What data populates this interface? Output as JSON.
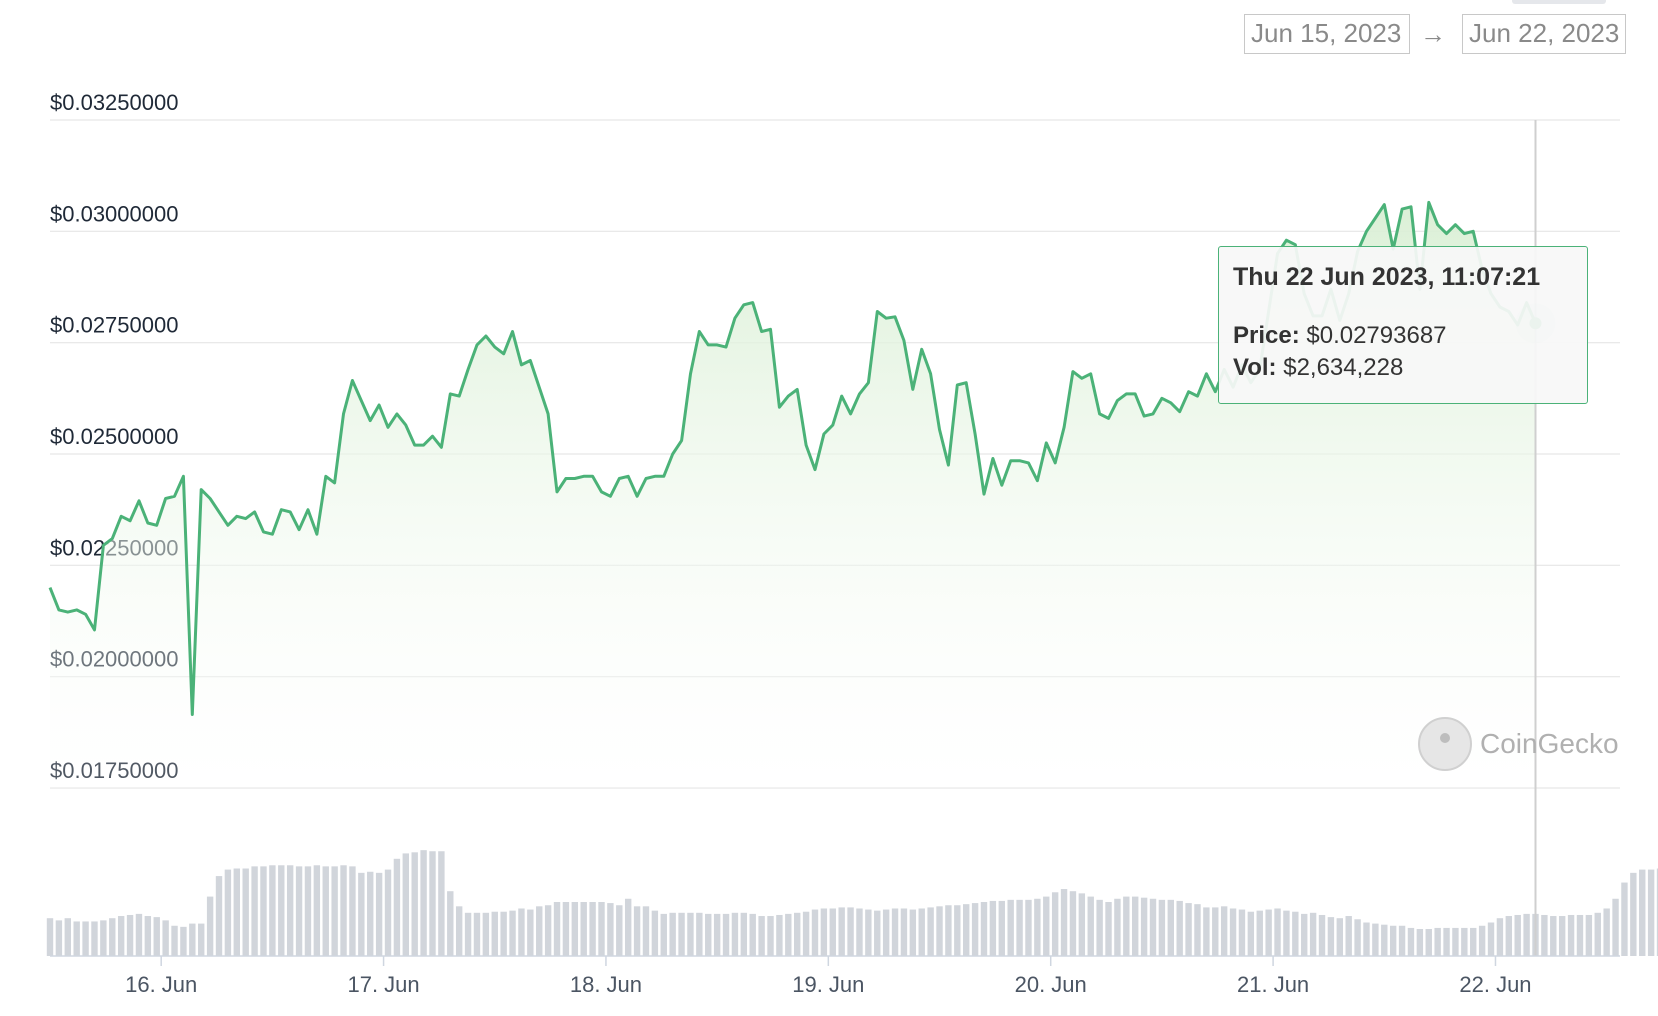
{
  "range": {
    "from": "Jun 15, 2023",
    "to": "Jun 22, 2023",
    "arrow": "→"
  },
  "tooltip": {
    "title": "Thu 22 Jun 2023, 11:07:21",
    "price_label": "Price:",
    "price_value": "$0.02793687",
    "vol_label": "Vol:",
    "vol_value": "$2,634,228"
  },
  "watermark": "CoinGecko",
  "colors": {
    "line": "#4bb278",
    "area_top": "#d9efd4",
    "volume_bar": "#d1d5db",
    "grid": "#e6e6e6"
  },
  "chart_data": {
    "type": "line",
    "y_ticks": [
      "$0.03250000",
      "$0.03000000",
      "$0.02750000",
      "$0.02500000",
      "$0.02250000",
      "$0.02000000",
      "$0.01750000"
    ],
    "y_tick_values": [
      0.0325,
      0.03,
      0.0275,
      0.025,
      0.0225,
      0.02,
      0.0175
    ],
    "ylim": [
      0.0175,
      0.0325
    ],
    "x_ticks": [
      "16. Jun",
      "17. Jun",
      "18. Jun",
      "19. Jun",
      "20. Jun",
      "21. Jun",
      "22. Jun"
    ],
    "x_tick_values": [
      1,
      2,
      3,
      4,
      5,
      6,
      7
    ],
    "xlim": [
      0.5,
      7.56
    ],
    "series": [
      {
        "values": [
          [
            0.5,
            0.022
          ],
          [
            0.54,
            0.0215
          ],
          [
            0.58,
            0.02145
          ],
          [
            0.62,
            0.0215
          ],
          [
            0.66,
            0.0214
          ],
          [
            0.7,
            0.02105
          ],
          [
            0.74,
            0.02295
          ],
          [
            0.78,
            0.0231
          ],
          [
            0.82,
            0.0236
          ],
          [
            0.86,
            0.0235
          ],
          [
            0.9,
            0.02395
          ],
          [
            0.94,
            0.02345
          ],
          [
            0.98,
            0.0234
          ],
          [
            1.02,
            0.024
          ],
          [
            1.06,
            0.02405
          ],
          [
            1.1,
            0.0245
          ],
          [
            1.14,
            0.01915
          ],
          [
            1.18,
            0.0242
          ],
          [
            1.22,
            0.024
          ],
          [
            1.26,
            0.0237
          ],
          [
            1.3,
            0.0234
          ],
          [
            1.34,
            0.0236
          ],
          [
            1.38,
            0.02355
          ],
          [
            1.42,
            0.0237
          ],
          [
            1.46,
            0.02325
          ],
          [
            1.5,
            0.0232
          ],
          [
            1.54,
            0.02375
          ],
          [
            1.58,
            0.0237
          ],
          [
            1.62,
            0.0233
          ],
          [
            1.66,
            0.02375
          ],
          [
            1.7,
            0.0232
          ],
          [
            1.74,
            0.0245
          ],
          [
            1.78,
            0.02435
          ],
          [
            1.82,
            0.0259
          ],
          [
            1.86,
            0.02665
          ],
          [
            1.9,
            0.0262
          ],
          [
            1.94,
            0.02575
          ],
          [
            1.98,
            0.0261
          ],
          [
            2.02,
            0.0256
          ],
          [
            2.06,
            0.0259
          ],
          [
            2.1,
            0.02565
          ],
          [
            2.14,
            0.0252
          ],
          [
            2.18,
            0.0252
          ],
          [
            2.22,
            0.0254
          ],
          [
            2.26,
            0.02515
          ],
          [
            2.3,
            0.02635
          ],
          [
            2.34,
            0.0263
          ],
          [
            2.38,
            0.0269
          ],
          [
            2.42,
            0.02745
          ],
          [
            2.46,
            0.02765
          ],
          [
            2.5,
            0.0274
          ],
          [
            2.54,
            0.02725
          ],
          [
            2.58,
            0.02775
          ],
          [
            2.62,
            0.027
          ],
          [
            2.66,
            0.0271
          ],
          [
            2.7,
            0.0265
          ],
          [
            2.74,
            0.0259
          ],
          [
            2.78,
            0.02415
          ],
          [
            2.82,
            0.02445
          ],
          [
            2.86,
            0.02445
          ],
          [
            2.9,
            0.0245
          ],
          [
            2.94,
            0.0245
          ],
          [
            2.98,
            0.02415
          ],
          [
            3.02,
            0.02405
          ],
          [
            3.06,
            0.02445
          ],
          [
            3.1,
            0.0245
          ],
          [
            3.14,
            0.02405
          ],
          [
            3.18,
            0.02445
          ],
          [
            3.22,
            0.0245
          ],
          [
            3.26,
            0.0245
          ],
          [
            3.3,
            0.025
          ],
          [
            3.34,
            0.0253
          ],
          [
            3.38,
            0.0268
          ],
          [
            3.42,
            0.02775
          ],
          [
            3.46,
            0.02745
          ],
          [
            3.5,
            0.02745
          ],
          [
            3.54,
            0.0274
          ],
          [
            3.58,
            0.02805
          ],
          [
            3.62,
            0.02835
          ],
          [
            3.66,
            0.0284
          ],
          [
            3.7,
            0.02775
          ],
          [
            3.74,
            0.0278
          ],
          [
            3.78,
            0.02605
          ],
          [
            3.82,
            0.0263
          ],
          [
            3.86,
            0.02645
          ],
          [
            3.9,
            0.0252
          ],
          [
            3.94,
            0.02465
          ],
          [
            3.98,
            0.02545
          ],
          [
            4.02,
            0.02565
          ],
          [
            4.06,
            0.0263
          ],
          [
            4.1,
            0.0259
          ],
          [
            4.14,
            0.02635
          ],
          [
            4.18,
            0.0266
          ],
          [
            4.22,
            0.0282
          ],
          [
            4.26,
            0.02805
          ],
          [
            4.3,
            0.02808
          ],
          [
            4.34,
            0.02755
          ],
          [
            4.38,
            0.02645
          ],
          [
            4.42,
            0.02735
          ],
          [
            4.46,
            0.0268
          ],
          [
            4.5,
            0.02555
          ],
          [
            4.54,
            0.02475
          ],
          [
            4.58,
            0.02655
          ],
          [
            4.62,
            0.0266
          ],
          [
            4.66,
            0.02545
          ],
          [
            4.7,
            0.0241
          ],
          [
            4.74,
            0.0249
          ],
          [
            4.78,
            0.0243
          ],
          [
            4.82,
            0.02485
          ],
          [
            4.86,
            0.02485
          ],
          [
            4.9,
            0.0248
          ],
          [
            4.94,
            0.0244
          ],
          [
            4.98,
            0.02525
          ],
          [
            5.02,
            0.0248
          ],
          [
            5.06,
            0.0256
          ],
          [
            5.1,
            0.02685
          ],
          [
            5.14,
            0.0267
          ],
          [
            5.18,
            0.0268
          ],
          [
            5.22,
            0.0259
          ],
          [
            5.26,
            0.0258
          ],
          [
            5.3,
            0.0262
          ],
          [
            5.34,
            0.02635
          ],
          [
            5.38,
            0.02635
          ],
          [
            5.42,
            0.02585
          ],
          [
            5.46,
            0.0259
          ],
          [
            5.5,
            0.02625
          ],
          [
            5.54,
            0.02615
          ],
          [
            5.58,
            0.02595
          ],
          [
            5.62,
            0.0264
          ],
          [
            5.66,
            0.0263
          ],
          [
            5.7,
            0.0268
          ],
          [
            5.74,
            0.0264
          ],
          [
            5.78,
            0.0269
          ],
          [
            5.82,
            0.0265
          ],
          [
            5.86,
            0.027
          ],
          [
            5.9,
            0.0266
          ],
          [
            5.94,
            0.0269
          ],
          [
            5.98,
            0.0282
          ],
          [
            6.02,
            0.0295
          ],
          [
            6.06,
            0.0298
          ],
          [
            6.1,
            0.0297
          ],
          [
            6.14,
            0.0286
          ],
          [
            6.18,
            0.0281
          ],
          [
            6.22,
            0.0281
          ],
          [
            6.26,
            0.0287
          ],
          [
            6.3,
            0.028
          ],
          [
            6.34,
            0.0286
          ],
          [
            6.38,
            0.02955
          ],
          [
            6.42,
            0.03
          ],
          [
            6.46,
            0.0303
          ],
          [
            6.5,
            0.0306
          ],
          [
            6.54,
            0.0296
          ],
          [
            6.58,
            0.0305
          ],
          [
            6.62,
            0.03055
          ],
          [
            6.66,
            0.0287
          ],
          [
            6.7,
            0.03065
          ],
          [
            6.74,
            0.03015
          ],
          [
            6.78,
            0.02995
          ],
          [
            6.82,
            0.03015
          ],
          [
            6.86,
            0.02995
          ],
          [
            6.9,
            0.03
          ],
          [
            6.94,
            0.02915
          ],
          [
            6.98,
            0.0286
          ],
          [
            7.02,
            0.0283
          ],
          [
            7.06,
            0.0282
          ],
          [
            7.1,
            0.0279
          ],
          [
            7.14,
            0.0284
          ],
          [
            7.18,
            0.02794
          ]
        ]
      }
    ],
    "volume": {
      "x_start": 0.5,
      "step": 0.04,
      "values": [
        0.35,
        0.33,
        0.35,
        0.32,
        0.32,
        0.32,
        0.33,
        0.35,
        0.37,
        0.38,
        0.39,
        0.37,
        0.36,
        0.33,
        0.28,
        0.27,
        0.3,
        0.3,
        0.55,
        0.74,
        0.8,
        0.81,
        0.81,
        0.83,
        0.83,
        0.84,
        0.84,
        0.84,
        0.83,
        0.83,
        0.84,
        0.83,
        0.83,
        0.84,
        0.83,
        0.77,
        0.78,
        0.77,
        0.8,
        0.9,
        0.95,
        0.96,
        0.98,
        0.97,
        0.97,
        0.6,
        0.46,
        0.4,
        0.4,
        0.4,
        0.41,
        0.41,
        0.42,
        0.44,
        0.43,
        0.46,
        0.47,
        0.5,
        0.5,
        0.5,
        0.5,
        0.5,
        0.5,
        0.49,
        0.47,
        0.53,
        0.46,
        0.46,
        0.42,
        0.39,
        0.4,
        0.4,
        0.4,
        0.4,
        0.39,
        0.39,
        0.39,
        0.4,
        0.4,
        0.39,
        0.37,
        0.37,
        0.38,
        0.39,
        0.4,
        0.41,
        0.43,
        0.44,
        0.44,
        0.45,
        0.45,
        0.44,
        0.43,
        0.42,
        0.43,
        0.44,
        0.44,
        0.43,
        0.44,
        0.45,
        0.46,
        0.47,
        0.47,
        0.48,
        0.49,
        0.5,
        0.51,
        0.51,
        0.52,
        0.52,
        0.52,
        0.53,
        0.55,
        0.59,
        0.62,
        0.6,
        0.58,
        0.55,
        0.52,
        0.5,
        0.53,
        0.55,
        0.55,
        0.54,
        0.53,
        0.52,
        0.52,
        0.51,
        0.49,
        0.48,
        0.45,
        0.45,
        0.46,
        0.44,
        0.43,
        0.41,
        0.42,
        0.43,
        0.44,
        0.42,
        0.41,
        0.39,
        0.4,
        0.38,
        0.36,
        0.35,
        0.37,
        0.34,
        0.31,
        0.3,
        0.29,
        0.28,
        0.28,
        0.26,
        0.25,
        0.25,
        0.26,
        0.26,
        0.26,
        0.26,
        0.26,
        0.28,
        0.31,
        0.35,
        0.37,
        0.38,
        0.39,
        0.39,
        0.38,
        0.37,
        0.37,
        0.38,
        0.38,
        0.38,
        0.4,
        0.44,
        0.53,
        0.68,
        0.77,
        0.8,
        0.8,
        0.81,
        0.83,
        0.84,
        0.84,
        0.84,
        0.84,
        0.83,
        0.8,
        0.77,
        0.75,
        0.75,
        0.76,
        0.77,
        0.78,
        0.79
      ]
    },
    "hover_point": {
      "x": 7.18,
      "y": 0.02793687
    },
    "grid": true
  }
}
